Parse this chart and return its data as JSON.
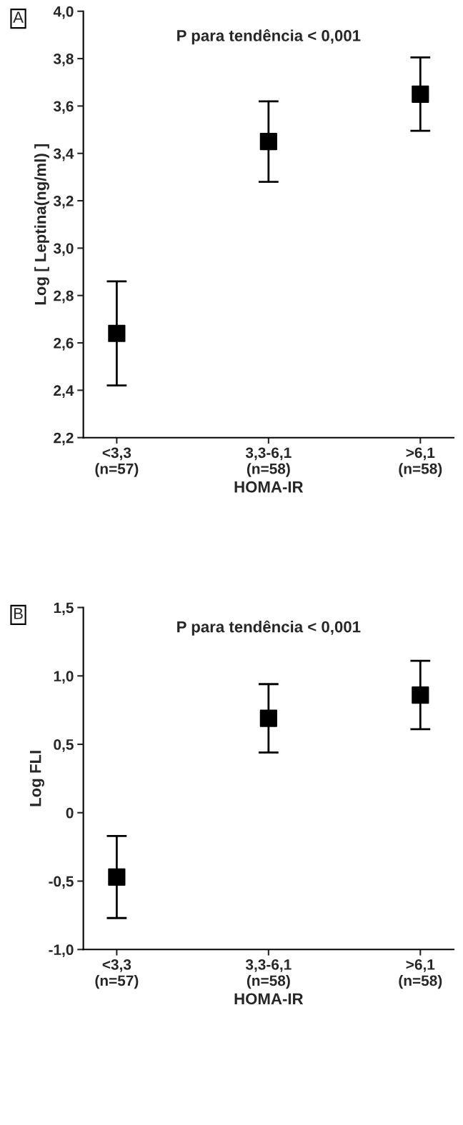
{
  "chart_data": [
    {
      "type": "scatter",
      "ylabel": "Log [ Leptina(ng/ml) ]",
      "xlabel": "HOMA-IR",
      "categories": [
        "<3,3\n(n=57)",
        "3,3-6,1\n(n=58)",
        ">6,1\n(n=58)"
      ],
      "values": [
        2.64,
        3.45,
        3.65
      ],
      "errors": [
        0.22,
        0.17,
        0.155
      ],
      "color": "#000000",
      "marker": "square",
      "grid": false,
      "legend": false,
      "ylim": [
        2.2,
        4.0
      ],
      "yticks": [
        {
          "value": 2.2,
          "label": "2,2"
        },
        {
          "value": 2.4,
          "label": "2,4"
        },
        {
          "value": 2.6,
          "label": "2,6"
        },
        {
          "value": 2.8,
          "label": "2,8"
        },
        {
          "value": 3.0,
          "label": "3,0"
        },
        {
          "value": 3.2,
          "label": "3,2"
        },
        {
          "value": 3.4,
          "label": "3,4"
        },
        {
          "value": 3.6,
          "label": "3,6"
        },
        {
          "value": 3.8,
          "label": "3,8"
        },
        {
          "value": 4.0,
          "label": "4,0"
        }
      ],
      "annotations": [
        "A",
        "P para tendência < 0,001"
      ]
    },
    {
      "type": "scatter",
      "ylabel": "Log FLI",
      "xlabel": "HOMA-IR",
      "categories": [
        "<3,3\n(n=57)",
        "3,3-6,1\n(n=58)",
        ">6,1\n(n=58)"
      ],
      "values": [
        -0.47,
        0.69,
        0.86
      ],
      "errors": [
        0.3,
        0.25,
        0.25
      ],
      "color": "#000000",
      "marker": "square",
      "grid": false,
      "legend": false,
      "ylim": [
        -1.0,
        1.5
      ],
      "yticks": [
        {
          "value": -1.0,
          "label": "-1,0"
        },
        {
          "value": -0.5,
          "label": "-0,5"
        },
        {
          "value": 0,
          "label": "0"
        },
        {
          "value": 0.5,
          "label": "0,5"
        },
        {
          "value": 1.0,
          "label": "1,0"
        },
        {
          "value": 1.5,
          "label": "1,5"
        }
      ],
      "annotations": [
        "B",
        "P para tendência < 0,001"
      ]
    }
  ]
}
